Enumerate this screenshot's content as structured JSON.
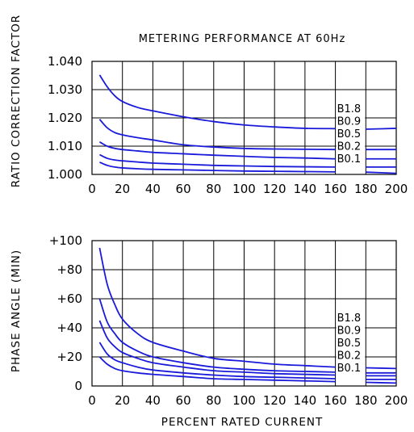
{
  "chart_data": [
    {
      "type": "line",
      "title": "METERING PERFORMANCE AT 60Hz",
      "xlabel": "",
      "ylabel": "RATIO CORRECTION FACTOR",
      "xlim": [
        0,
        200
      ],
      "ylim": [
        1.0,
        1.04
      ],
      "grid": true,
      "xticks": [
        0,
        20,
        40,
        60,
        80,
        100,
        120,
        140,
        160,
        180,
        200
      ],
      "yticks": [
        "1.000",
        "1.010",
        "1.020",
        "1.030",
        "1.040"
      ],
      "yticks_values": [
        1.0,
        1.01,
        1.02,
        1.03,
        1.04
      ],
      "line_color": "#1a1adb",
      "legend_position": "right, inside plot near x=160-180",
      "series": [
        {
          "name": "B1.8",
          "x": [
            5,
            10,
            15,
            20,
            30,
            40,
            60,
            80,
            100,
            120,
            140,
            160,
            180,
            200
          ],
          "y": [
            1.0352,
            1.031,
            1.0278,
            1.0258,
            1.0237,
            1.0225,
            1.0204,
            1.0187,
            1.0175,
            1.0168,
            1.0163,
            1.0162,
            1.016,
            1.0163
          ]
        },
        {
          "name": "B0.9",
          "x": [
            5,
            10,
            15,
            20,
            30,
            40,
            60,
            80,
            100,
            120,
            140,
            160,
            180,
            200
          ],
          "y": [
            1.0195,
            1.0165,
            1.0148,
            1.014,
            1.013,
            1.0122,
            1.0105,
            1.0097,
            1.0092,
            1.009,
            1.0089,
            1.0088,
            1.0088,
            1.0088
          ]
        },
        {
          "name": "B0.5",
          "x": [
            5,
            10,
            15,
            20,
            30,
            40,
            60,
            80,
            100,
            120,
            140,
            160,
            180,
            200
          ],
          "y": [
            1.0115,
            1.01,
            1.0092,
            1.0088,
            1.0083,
            1.0078,
            1.0073,
            1.0068,
            1.0064,
            1.006,
            1.0058,
            1.0055,
            1.0055,
            1.0055
          ]
        },
        {
          "name": "B0.2",
          "x": [
            5,
            10,
            15,
            20,
            30,
            40,
            60,
            80,
            100,
            120,
            140,
            160,
            180,
            200
          ],
          "y": [
            1.007,
            1.0057,
            1.0051,
            1.0048,
            1.0044,
            1.004,
            1.0036,
            1.0032,
            1.003,
            1.0028,
            1.0027,
            1.0026,
            1.0026,
            1.0026
          ]
        },
        {
          "name": "B0.1",
          "x": [
            5,
            10,
            15,
            20,
            30,
            40,
            60,
            80,
            100,
            120,
            140,
            160,
            180,
            200
          ],
          "y": [
            1.0043,
            1.0032,
            1.0026,
            1.0023,
            1.002,
            1.0018,
            1.0016,
            1.0014,
            1.0012,
            1.0011,
            1.001,
            1.0009,
            1.0008,
            1.0004
          ]
        }
      ]
    },
    {
      "type": "line",
      "title": "",
      "xlabel": "PERCENT RATED CURRENT",
      "ylabel": "PHASE ANGLE   (MIN)",
      "xlim": [
        0,
        200
      ],
      "ylim": [
        0,
        100
      ],
      "grid": true,
      "xticks": [
        0,
        20,
        40,
        60,
        80,
        100,
        120,
        140,
        160,
        180,
        200
      ],
      "yticks": [
        "0",
        "+20",
        "+40",
        "+60",
        "+80",
        "+100"
      ],
      "yticks_values": [
        0,
        20,
        40,
        60,
        80,
        100
      ],
      "line_color": "#1a1adb",
      "legend_position": "right, inside plot near x=160-180",
      "series": [
        {
          "name": "B1.8",
          "x": [
            5,
            10,
            15,
            20,
            30,
            40,
            60,
            80,
            100,
            120,
            140,
            160,
            180,
            200
          ],
          "y": [
            95,
            70,
            56,
            46,
            36,
            30,
            24,
            19,
            17,
            15,
            14,
            13,
            12.5,
            12
          ]
        },
        {
          "name": "B0.9",
          "x": [
            5,
            10,
            15,
            20,
            30,
            40,
            60,
            80,
            100,
            120,
            140,
            160,
            180,
            200
          ],
          "y": [
            60,
            44,
            36,
            30,
            24,
            20,
            16,
            13,
            11.5,
            10.5,
            10,
            9.5,
            9,
            9
          ]
        },
        {
          "name": "B0.5",
          "x": [
            5,
            10,
            15,
            20,
            30,
            40,
            60,
            80,
            100,
            120,
            140,
            160,
            180,
            200
          ],
          "y": [
            45,
            33,
            27,
            23,
            19,
            16,
            13,
            10.5,
            9.5,
            8.5,
            8,
            7.5,
            7,
            7
          ]
        },
        {
          "name": "B0.2",
          "x": [
            5,
            10,
            15,
            20,
            30,
            40,
            60,
            80,
            100,
            120,
            140,
            160,
            180,
            200
          ],
          "y": [
            30,
            22,
            18,
            16,
            13,
            11,
            9,
            7.5,
            6.5,
            6,
            5.5,
            5,
            4.5,
            4.5
          ]
        },
        {
          "name": "B0.1",
          "x": [
            5,
            10,
            15,
            20,
            30,
            40,
            60,
            80,
            100,
            120,
            140,
            160,
            180,
            200
          ],
          "y": [
            20,
            15,
            12,
            10.5,
            9,
            8,
            6.5,
            5,
            4.5,
            4,
            3.5,
            3,
            2.5,
            2
          ]
        }
      ]
    }
  ]
}
